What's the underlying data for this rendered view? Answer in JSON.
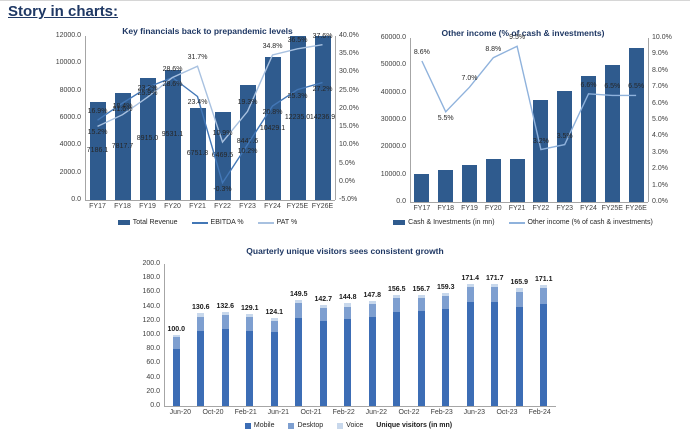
{
  "page_title": "Story in charts:",
  "colors": {
    "title_navy": "#1F3864",
    "bar_dark": "#2F5B8E",
    "line_medium": "#4377B6",
    "line_light": "#A8C1E0",
    "line_light2": "#8FB2DC",
    "mobile": "#3C6DB5",
    "desktop": "#7E9FD0",
    "voice": "#C8D8EC"
  },
  "chart_data": [
    {
      "type": "bar",
      "title": "Key financials back to prepandemic levels",
      "categories": [
        "FY17",
        "FY18",
        "FY19",
        "FY20",
        "FY21",
        "FY22",
        "FY23",
        "FY24",
        "FY25E",
        "FY26E"
      ],
      "series": [
        {
          "name": "Total Revenue",
          "kind": "bar",
          "axis": "left",
          "color_key": "bar_dark",
          "values": [
            7186.1,
            7817.7,
            8915.0,
            9531.1,
            6751.8,
            6469.5,
            8447.6,
            10429.1,
            12235.0,
            14236.9
          ],
          "labels": [
            "7186.1",
            "7817.7",
            "8915.0",
            "9531.1",
            "6751.8",
            "6469.5",
            "8447.6",
            "10429.1",
            "12235.0",
            "14236.9"
          ]
        },
        {
          "name": "EBITDA %",
          "kind": "line",
          "axis": "right",
          "color_key": "line_medium",
          "values": [
            16.9,
            21.6,
            25.9,
            28.6,
            23.4,
            -0.3,
            10.2,
            20.8,
            25.3,
            27.2
          ],
          "labels": [
            "16.9%",
            "21.6%",
            "25.9%",
            "28.6%",
            "23.4%",
            "-0.3%",
            "10.2%",
            "20.8%",
            "25.3%",
            "27.2%"
          ],
          "label_side": [
            "above",
            "below",
            "below",
            "below",
            "below",
            "below",
            "below",
            "below",
            "below",
            "below"
          ]
        },
        {
          "name": "PAT %",
          "kind": "line",
          "axis": "right",
          "color_key": "line_light",
          "values": [
            15.2,
            18.4,
            23.2,
            28.6,
            31.7,
            10.9,
            19.3,
            34.8,
            36.5,
            37.6
          ],
          "labels": [
            "15.2%",
            "18.4%",
            "23.2%",
            "28.6%",
            "31.7%",
            "10.9%",
            "19.3%",
            "34.8%",
            "36.5%",
            "37.6%"
          ],
          "label_side": [
            "below",
            "above",
            "above",
            "above",
            "above",
            "above",
            "above",
            "above",
            "above",
            "above"
          ]
        }
      ],
      "left_axis": {
        "min": 0,
        "max": 12000,
        "ticks": [
          "12000.0",
          "10000.0",
          "8000.0",
          "6000.0",
          "4000.0",
          "2000.0",
          "0.0"
        ]
      },
      "right_axis": {
        "min": -5,
        "max": 40,
        "ticks": [
          "40.0%",
          "35.0%",
          "30.0%",
          "25.0%",
          "20.0%",
          "15.0%",
          "10.0%",
          "5.0%",
          "0.0%",
          "-5.0%"
        ]
      },
      "legend": [
        {
          "label": "Total Revenue",
          "swatch": "bar",
          "color_key": "bar_dark"
        },
        {
          "label": "EBITDA %",
          "swatch": "line",
          "color_key": "line_medium"
        },
        {
          "label": "PAT %",
          "swatch": "line",
          "color_key": "line_light"
        }
      ]
    },
    {
      "type": "bar",
      "title": "Other income (% of cash & investments)",
      "categories": [
        "FY17",
        "FY18",
        "FY19",
        "FY20",
        "FY21",
        "FY22",
        "FY23",
        "FY24",
        "FY25E",
        "FY26E"
      ],
      "series": [
        {
          "name": "Cash & Investments (in mn)",
          "kind": "bar",
          "axis": "left",
          "color_key": "bar_dark",
          "values": [
            10200,
            11800,
            13400,
            15800,
            15700,
            37500,
            40500,
            46000,
            50000,
            56500
          ],
          "labels": null
        },
        {
          "name": "Other income (% of cash & investments)",
          "kind": "line",
          "axis": "right",
          "color_key": "line_light2",
          "values": [
            8.6,
            5.5,
            7.0,
            8.8,
            9.5,
            3.2,
            3.5,
            6.6,
            6.5,
            6.5
          ],
          "labels": [
            "8.6%",
            "5.5%",
            "7.0%",
            "8.8%",
            "9.5%",
            "3.2%",
            "3.5%",
            "6.6%",
            "6.5%",
            "6.5%"
          ],
          "label_side": [
            "above",
            "below",
            "above",
            "above",
            "above",
            "above",
            "above",
            "above",
            "above",
            "above"
          ]
        }
      ],
      "left_axis": {
        "min": 0,
        "max": 60000,
        "ticks": [
          "60000.0",
          "50000.0",
          "40000.0",
          "30000.0",
          "20000.0",
          "10000.0",
          "0.0"
        ]
      },
      "right_axis": {
        "min": 0,
        "max": 10,
        "ticks": [
          "10.0%",
          "9.0%",
          "8.0%",
          "7.0%",
          "6.0%",
          "5.0%",
          "4.0%",
          "3.0%",
          "2.0%",
          "1.0%",
          "0.0%"
        ]
      },
      "legend": [
        {
          "label": "Cash & Investments (in mn)",
          "swatch": "bar",
          "color_key": "bar_dark"
        },
        {
          "label": "Other income (% of cash & investments)",
          "swatch": "line",
          "color_key": "line_light2"
        }
      ]
    },
    {
      "type": "stacked-bar",
      "title": "Quarterly unique visitors sees consistent growth",
      "x_tick_labels": [
        "Jun-20",
        "Oct-20",
        "Feb-21",
        "Jun-21",
        "Oct-21",
        "Feb-22",
        "Jun-22",
        "Oct-22",
        "Feb-23",
        "Jun-23",
        "Oct-23",
        "Feb-24"
      ],
      "totals": [
        "100.0",
        "130.6",
        "132.6",
        "129.1",
        "124.1",
        "149.5",
        "142.7",
        "144.8",
        "147.8",
        "156.5",
        "156.7",
        "159.3",
        "171.4",
        "171.7",
        "165.9",
        "171.1"
      ],
      "series": [
        {
          "name": "Mobile",
          "color_key": "mobile",
          "values": [
            80,
            105,
            108,
            106,
            104,
            124,
            120,
            122,
            125,
            133,
            134,
            137,
            146,
            147,
            140,
            144
          ]
        },
        {
          "name": "Desktop",
          "color_key": "desktop",
          "values": [
            16.5,
            21,
            20,
            19,
            16,
            21,
            18,
            18,
            18,
            19,
            18,
            18,
            21,
            20,
            21,
            22
          ]
        },
        {
          "name": "Voice",
          "color_key": "voice",
          "values": [
            3.5,
            4.6,
            4.6,
            4.1,
            4.1,
            4.5,
            4.7,
            4.8,
            4.8,
            4.5,
            4.7,
            4.3,
            4.4,
            4.7,
            4.9,
            5.1
          ]
        }
      ],
      "y_axis": {
        "min": 0,
        "max": 200,
        "ticks": [
          "200.0",
          "180.0",
          "160.0",
          "140.0",
          "120.0",
          "100.0",
          "80.0",
          "60.0",
          "40.0",
          "20.0",
          "0.0"
        ]
      },
      "legend": [
        {
          "label": "Mobile",
          "swatch": "square",
          "color_key": "mobile"
        },
        {
          "label": "Desktop",
          "swatch": "square",
          "color_key": "desktop"
        },
        {
          "label": "Voice",
          "swatch": "square",
          "color_key": "voice"
        }
      ],
      "legend_note": "Unique visitors (in mn)"
    }
  ]
}
